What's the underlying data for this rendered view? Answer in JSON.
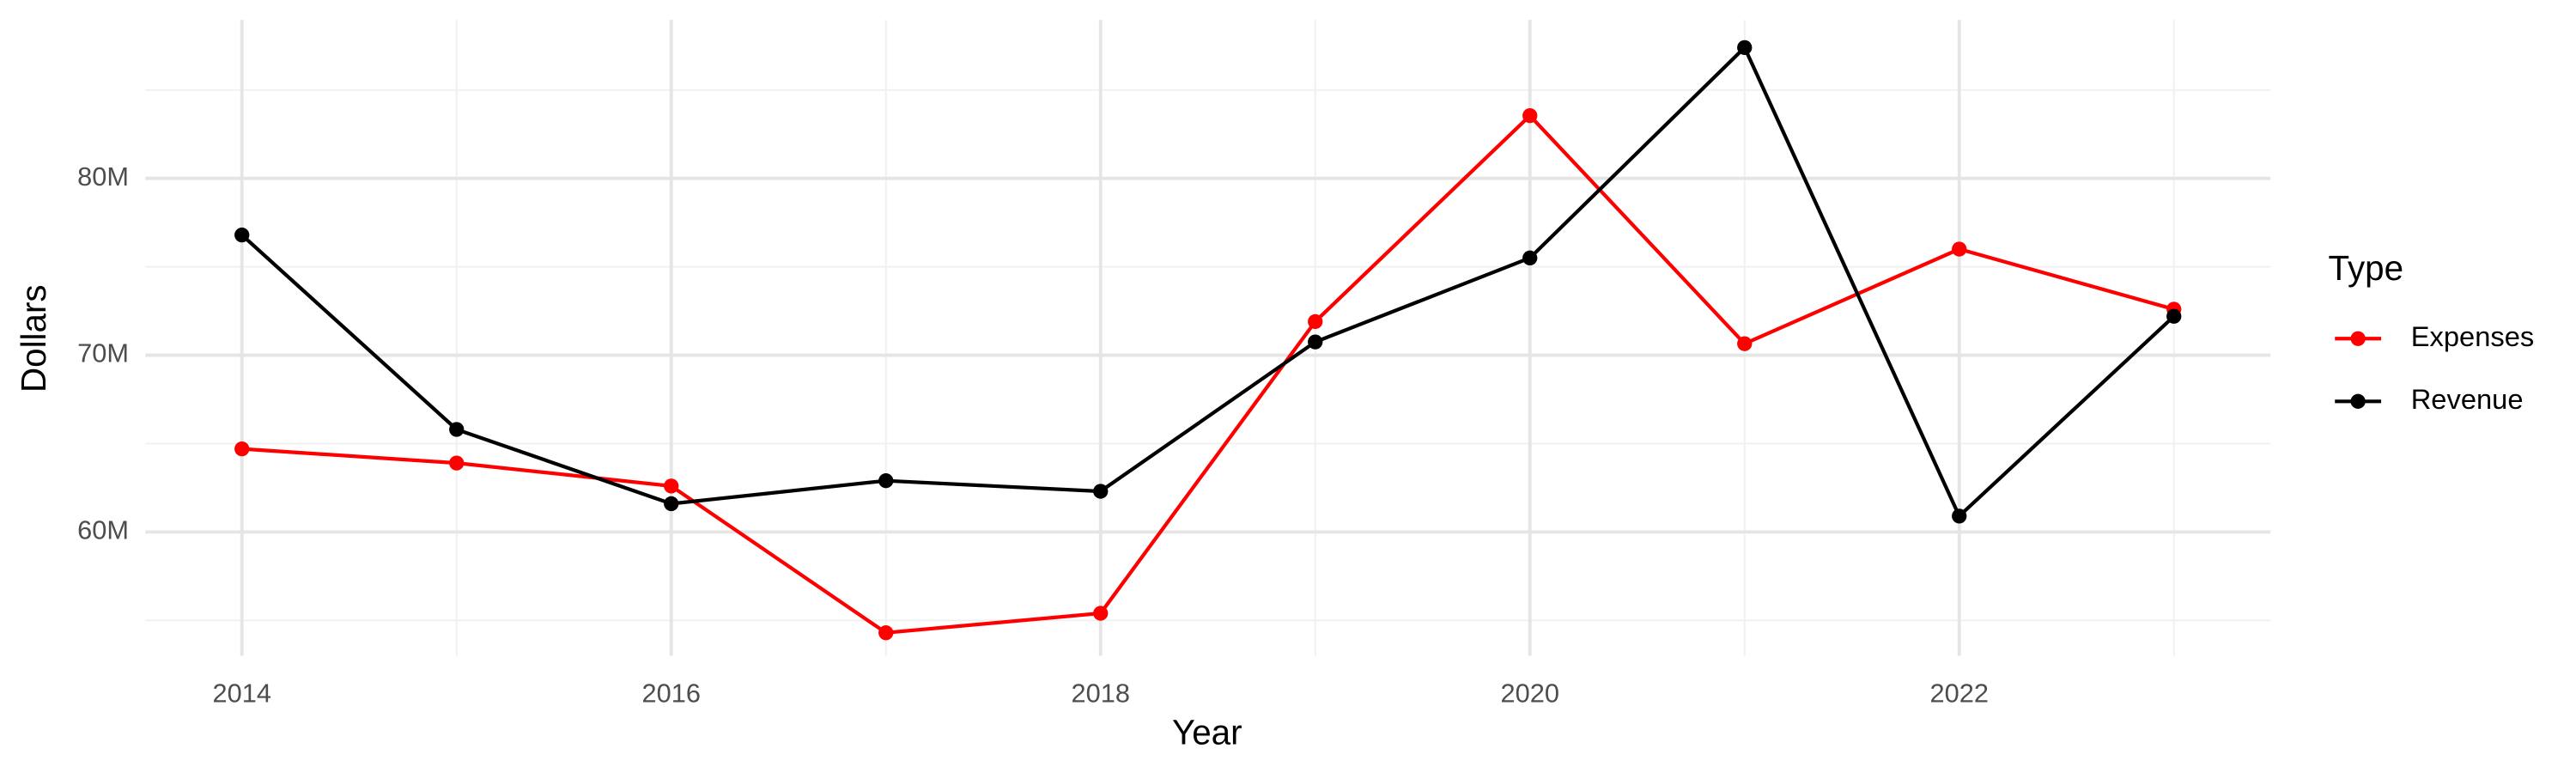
{
  "chart_data": {
    "type": "line",
    "x_label": "Year",
    "y_label": "Dollars",
    "legend_title": "Type",
    "legend": "right",
    "grid": true,
    "x": [
      2014,
      2015,
      2016,
      2017,
      2018,
      2019,
      2020,
      2021,
      2022,
      2023
    ],
    "series": [
      {
        "name": "Expenses",
        "color": "#ff0000",
        "values": [
          64700000,
          63900000,
          62600000,
          54300000,
          55400000,
          71900000,
          83550000,
          70650000,
          76000000,
          72600000
        ]
      },
      {
        "name": "Revenue",
        "color": "#000000",
        "values": [
          76800000,
          65800000,
          61600000,
          62900000,
          62300000,
          70750000,
          75500000,
          87400000,
          60900000,
          72200000
        ]
      }
    ],
    "xlim": [
      2013.55,
      2023.45
    ],
    "xticks": [
      2014,
      2016,
      2018,
      2020,
      2022
    ],
    "x_minor_ticks": [
      2015,
      2017,
      2019,
      2021,
      2023
    ],
    "ylim": [
      53000000,
      88970000
    ],
    "yticks": [
      {
        "value": 60000000,
        "label": "60M"
      },
      {
        "value": 70000000,
        "label": "70M"
      },
      {
        "value": 80000000,
        "label": "80M"
      }
    ],
    "y_minor_ticks": [
      55000000,
      65000000,
      75000000,
      85000000
    ]
  }
}
